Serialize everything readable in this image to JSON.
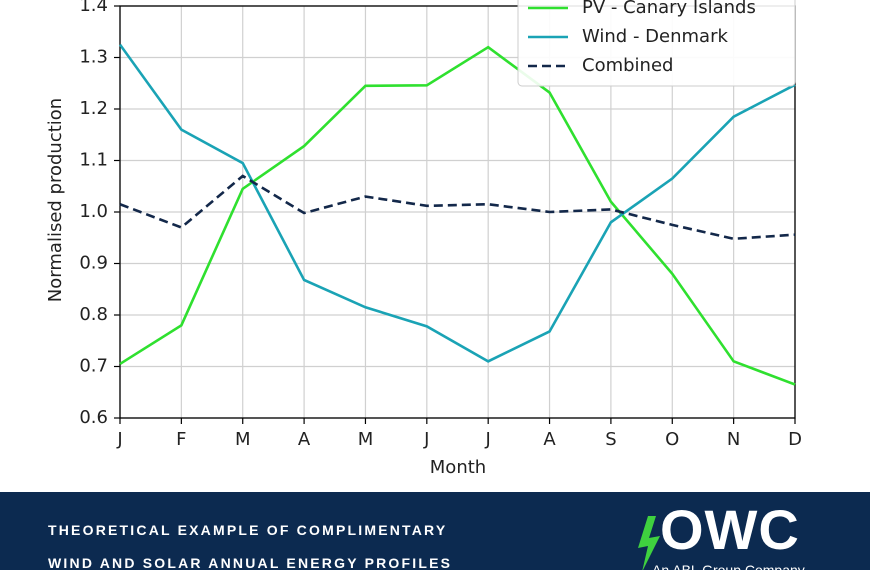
{
  "chart_data": {
    "type": "line",
    "categories": [
      "J",
      "F",
      "M",
      "A",
      "M",
      "J",
      "J",
      "A",
      "S",
      "O",
      "N",
      "D"
    ],
    "series": [
      {
        "name": "PV - Canary Islands",
        "color": "#2fe02f",
        "linestyle": "solid",
        "values": [
          0.705,
          0.78,
          1.045,
          1.128,
          1.245,
          1.246,
          1.32,
          1.232,
          1.02,
          0.88,
          0.71,
          0.665
        ]
      },
      {
        "name": "Wind - Denmark",
        "color": "#1aa3b5",
        "linestyle": "solid",
        "values": [
          1.325,
          1.16,
          1.095,
          0.868,
          0.815,
          0.778,
          0.71,
          0.768,
          0.98,
          1.065,
          1.185,
          1.247
        ]
      },
      {
        "name": "Combined",
        "color": "#13284a",
        "linestyle": "dashed",
        "values": [
          1.015,
          0.97,
          1.07,
          0.998,
          1.03,
          1.012,
          1.015,
          1.0,
          1.005,
          0.975,
          0.948,
          0.956
        ]
      }
    ],
    "xlabel": "Month",
    "ylabel": "Normalised production",
    "ylim": [
      0.6,
      1.4
    ],
    "yticks": [
      {
        "value": 0.6,
        "label": "0.6"
      },
      {
        "value": 0.7,
        "label": "0.7"
      },
      {
        "value": 0.8,
        "label": "0.8"
      },
      {
        "value": 0.9,
        "label": "0.9"
      },
      {
        "value": 1.0,
        "label": "1.0"
      },
      {
        "value": 1.1,
        "label": "1.1"
      },
      {
        "value": 1.2,
        "label": "1.2"
      },
      {
        "value": 1.3,
        "label": "1.3"
      },
      {
        "value": 1.4,
        "label": "1.4"
      }
    ],
    "grid": true,
    "legend": "upper right"
  },
  "footer": {
    "caption": [
      "THEORETICAL EXAMPLE OF COMPLIMENTARY",
      "WIND AND SOLAR ANNUAL ENERGY PROFILES"
    ],
    "logo": "OWC",
    "tagline": "An ABL Group Company"
  }
}
